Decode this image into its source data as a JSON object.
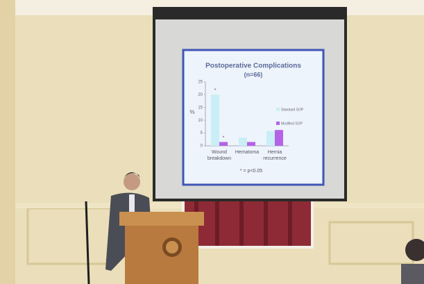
{
  "chart_data": {
    "type": "bar",
    "title": "Postoperative Complications",
    "subtitle": "(n=66)",
    "y_label": "%",
    "categories": [
      "Wound breakdown",
      "Hematoma",
      "Hernia recurrence"
    ],
    "series": [
      {
        "name": "Standard SOP",
        "color": "#c9eef6",
        "values": [
          20,
          3.2,
          5.8
        ]
      },
      {
        "name": "Modified SOP",
        "color": "#b463e6",
        "values": [
          1.5,
          1.5,
          6.2
        ]
      }
    ],
    "significance_marks": [
      "*",
      "*"
    ],
    "note": "* = p<0.05",
    "ylim": [
      0,
      25
    ],
    "yticks": [
      0,
      5,
      10,
      15,
      20,
      25
    ],
    "legend": "right"
  }
}
